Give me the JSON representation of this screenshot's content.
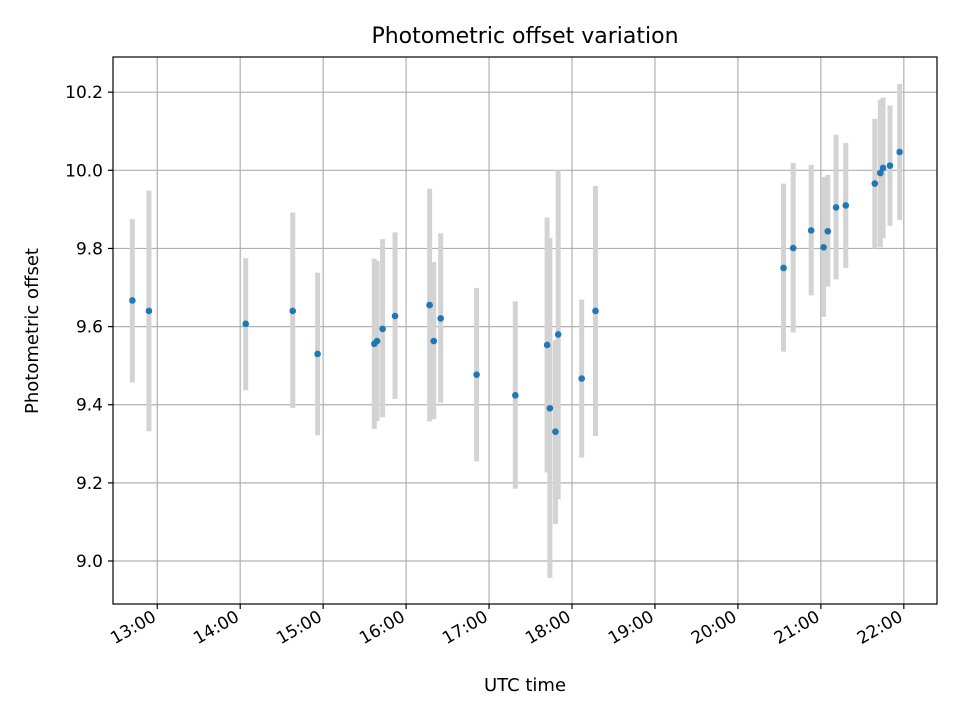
{
  "chart_data": {
    "type": "scatter",
    "title": "Photometric offset variation",
    "xlabel": "UTC time",
    "ylabel": "Photometric offset",
    "x_ticks": [
      "13:00",
      "14:00",
      "15:00",
      "16:00",
      "17:00",
      "18:00",
      "19:00",
      "20:00",
      "21:00",
      "22:00"
    ],
    "y_ticks": [
      "9.0",
      "9.2",
      "9.4",
      "9.6",
      "9.8",
      "10.0",
      "10.2"
    ],
    "xlim": [
      "12:28",
      "22:24"
    ],
    "ylim": [
      8.89,
      10.29
    ],
    "grid": true,
    "colors": {
      "points": "#1f77b4",
      "errorbars": "#d3d3d3",
      "grid": "#b0b0b0"
    },
    "points": [
      {
        "x": "12:42",
        "y": 9.667,
        "low": 9.457,
        "high": 9.875
      },
      {
        "x": "12:54",
        "y": 9.64,
        "low": 9.332,
        "high": 9.948
      },
      {
        "x": "14:04",
        "y": 9.607,
        "low": 9.437,
        "high": 9.775
      },
      {
        "x": "14:38",
        "y": 9.64,
        "low": 9.392,
        "high": 9.892
      },
      {
        "x": "14:56",
        "y": 9.53,
        "low": 9.322,
        "high": 9.738
      },
      {
        "x": "15:37",
        "y": 9.556,
        "low": 9.338,
        "high": 9.774
      },
      {
        "x": "15:39",
        "y": 9.563,
        "low": 9.358,
        "high": 9.768
      },
      {
        "x": "15:43",
        "y": 9.594,
        "low": 9.368,
        "high": 9.824
      },
      {
        "x": "15:52",
        "y": 9.627,
        "low": 9.415,
        "high": 9.841
      },
      {
        "x": "16:17",
        "y": 9.655,
        "low": 9.357,
        "high": 9.953
      },
      {
        "x": "16:20",
        "y": 9.563,
        "low": 9.363,
        "high": 9.765
      },
      {
        "x": "16:25",
        "y": 9.621,
        "low": 9.405,
        "high": 9.839
      },
      {
        "x": "16:51",
        "y": 9.477,
        "low": 9.255,
        "high": 9.699
      },
      {
        "x": "17:19",
        "y": 9.424,
        "low": 9.185,
        "high": 9.665
      },
      {
        "x": "17:42",
        "y": 9.553,
        "low": 9.227,
        "high": 9.879
      },
      {
        "x": "17:44",
        "y": 9.391,
        "low": 8.957,
        "high": 9.827
      },
      {
        "x": "17:48",
        "y": 9.331,
        "low": 9.095,
        "high": 9.565
      },
      {
        "x": "17:50",
        "y": 9.58,
        "low": 9.158,
        "high": 10.0
      },
      {
        "x": "18:07",
        "y": 9.467,
        "low": 9.265,
        "high": 9.669
      },
      {
        "x": "18:17",
        "y": 9.64,
        "low": 9.32,
        "high": 9.96
      },
      {
        "x": "20:33",
        "y": 9.75,
        "low": 9.536,
        "high": 9.966
      },
      {
        "x": "20:40",
        "y": 9.801,
        "low": 9.585,
        "high": 10.019
      },
      {
        "x": "20:53",
        "y": 9.846,
        "low": 9.68,
        "high": 10.014
      },
      {
        "x": "21:02",
        "y": 9.803,
        "low": 9.625,
        "high": 9.983
      },
      {
        "x": "21:05",
        "y": 9.844,
        "low": 9.702,
        "high": 9.988
      },
      {
        "x": "21:11",
        "y": 9.905,
        "low": 9.721,
        "high": 10.091
      },
      {
        "x": "21:18",
        "y": 9.91,
        "low": 9.75,
        "high": 10.07
      },
      {
        "x": "21:39",
        "y": 9.966,
        "low": 9.8,
        "high": 10.132
      },
      {
        "x": "21:43",
        "y": 9.993,
        "low": 9.803,
        "high": 10.181
      },
      {
        "x": "21:45",
        "y": 10.006,
        "low": 9.826,
        "high": 10.186
      },
      {
        "x": "21:50",
        "y": 10.012,
        "low": 9.858,
        "high": 10.166
      },
      {
        "x": "21:57",
        "y": 10.047,
        "low": 9.873,
        "high": 10.221
      }
    ]
  }
}
